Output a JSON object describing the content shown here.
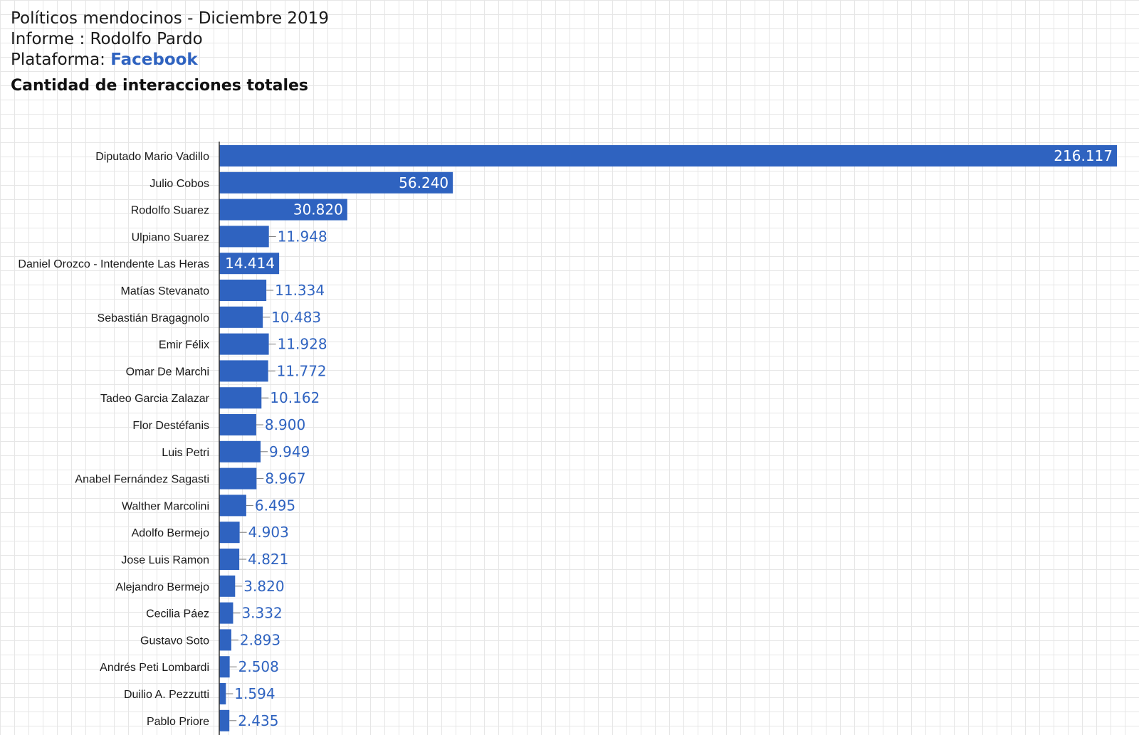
{
  "header": {
    "line1": "Políticos mendocinos - Diciembre 2019",
    "line2": "Informe : Rodolfo Pardo",
    "platform_label": "Plataforma:",
    "platform_value": "Facebook"
  },
  "colors": {
    "bar": "#2f63c0",
    "axis": "#333333",
    "label_outside": "#2f63c0",
    "label_inside": "#ffffff",
    "grid": "#e6e6e6"
  },
  "chart_data": {
    "type": "bar",
    "orientation": "horizontal",
    "title": "Cantidad de interacciones totales",
    "xlabel": "",
    "ylabel": "",
    "grid": true,
    "xlim": [
      0,
      216117
    ],
    "categories": [
      "Diputado Mario Vadillo",
      "Julio Cobos",
      "Rodolfo Suarez",
      "Ulpiano Suarez",
      "Daniel Orozco - Intendente Las Heras",
      "Matías Stevanato",
      "Sebastián Bragagnolo",
      "Emir Félix",
      "Omar De Marchi",
      "Tadeo Garcia Zalazar",
      "Flor Destéfanis",
      "Luis Petri",
      "Anabel Fernández Sagasti",
      "Walther Marcolini",
      "Adolfo Bermejo",
      "Jose Luis Ramon",
      "Alejandro Bermejo",
      "Cecilia Páez",
      "Gustavo Soto",
      "Andrés Peti Lombardi",
      "Duilio A. Pezzutti",
      "Pablo Priore"
    ],
    "values": [
      216117,
      56240,
      30820,
      11948,
      14414,
      11334,
      10483,
      11928,
      11772,
      10162,
      8900,
      9949,
      8967,
      6495,
      4903,
      4821,
      3820,
      3332,
      2893,
      2508,
      1594,
      2435
    ],
    "value_labels": [
      "216.117",
      "56.240",
      "30.820",
      "11.948",
      "14.414",
      "11.334",
      "10.483",
      "11.928",
      "11.772",
      "10.162",
      "8.900",
      "9.949",
      "8.967",
      "6.495",
      "4.903",
      "4.821",
      "3.820",
      "3.332",
      "2.893",
      "2.508",
      "1.594",
      "2.435"
    ],
    "label_inside": [
      true,
      true,
      true,
      false,
      true,
      false,
      false,
      false,
      false,
      false,
      false,
      false,
      false,
      false,
      false,
      false,
      false,
      false,
      false,
      false,
      false,
      false
    ]
  }
}
